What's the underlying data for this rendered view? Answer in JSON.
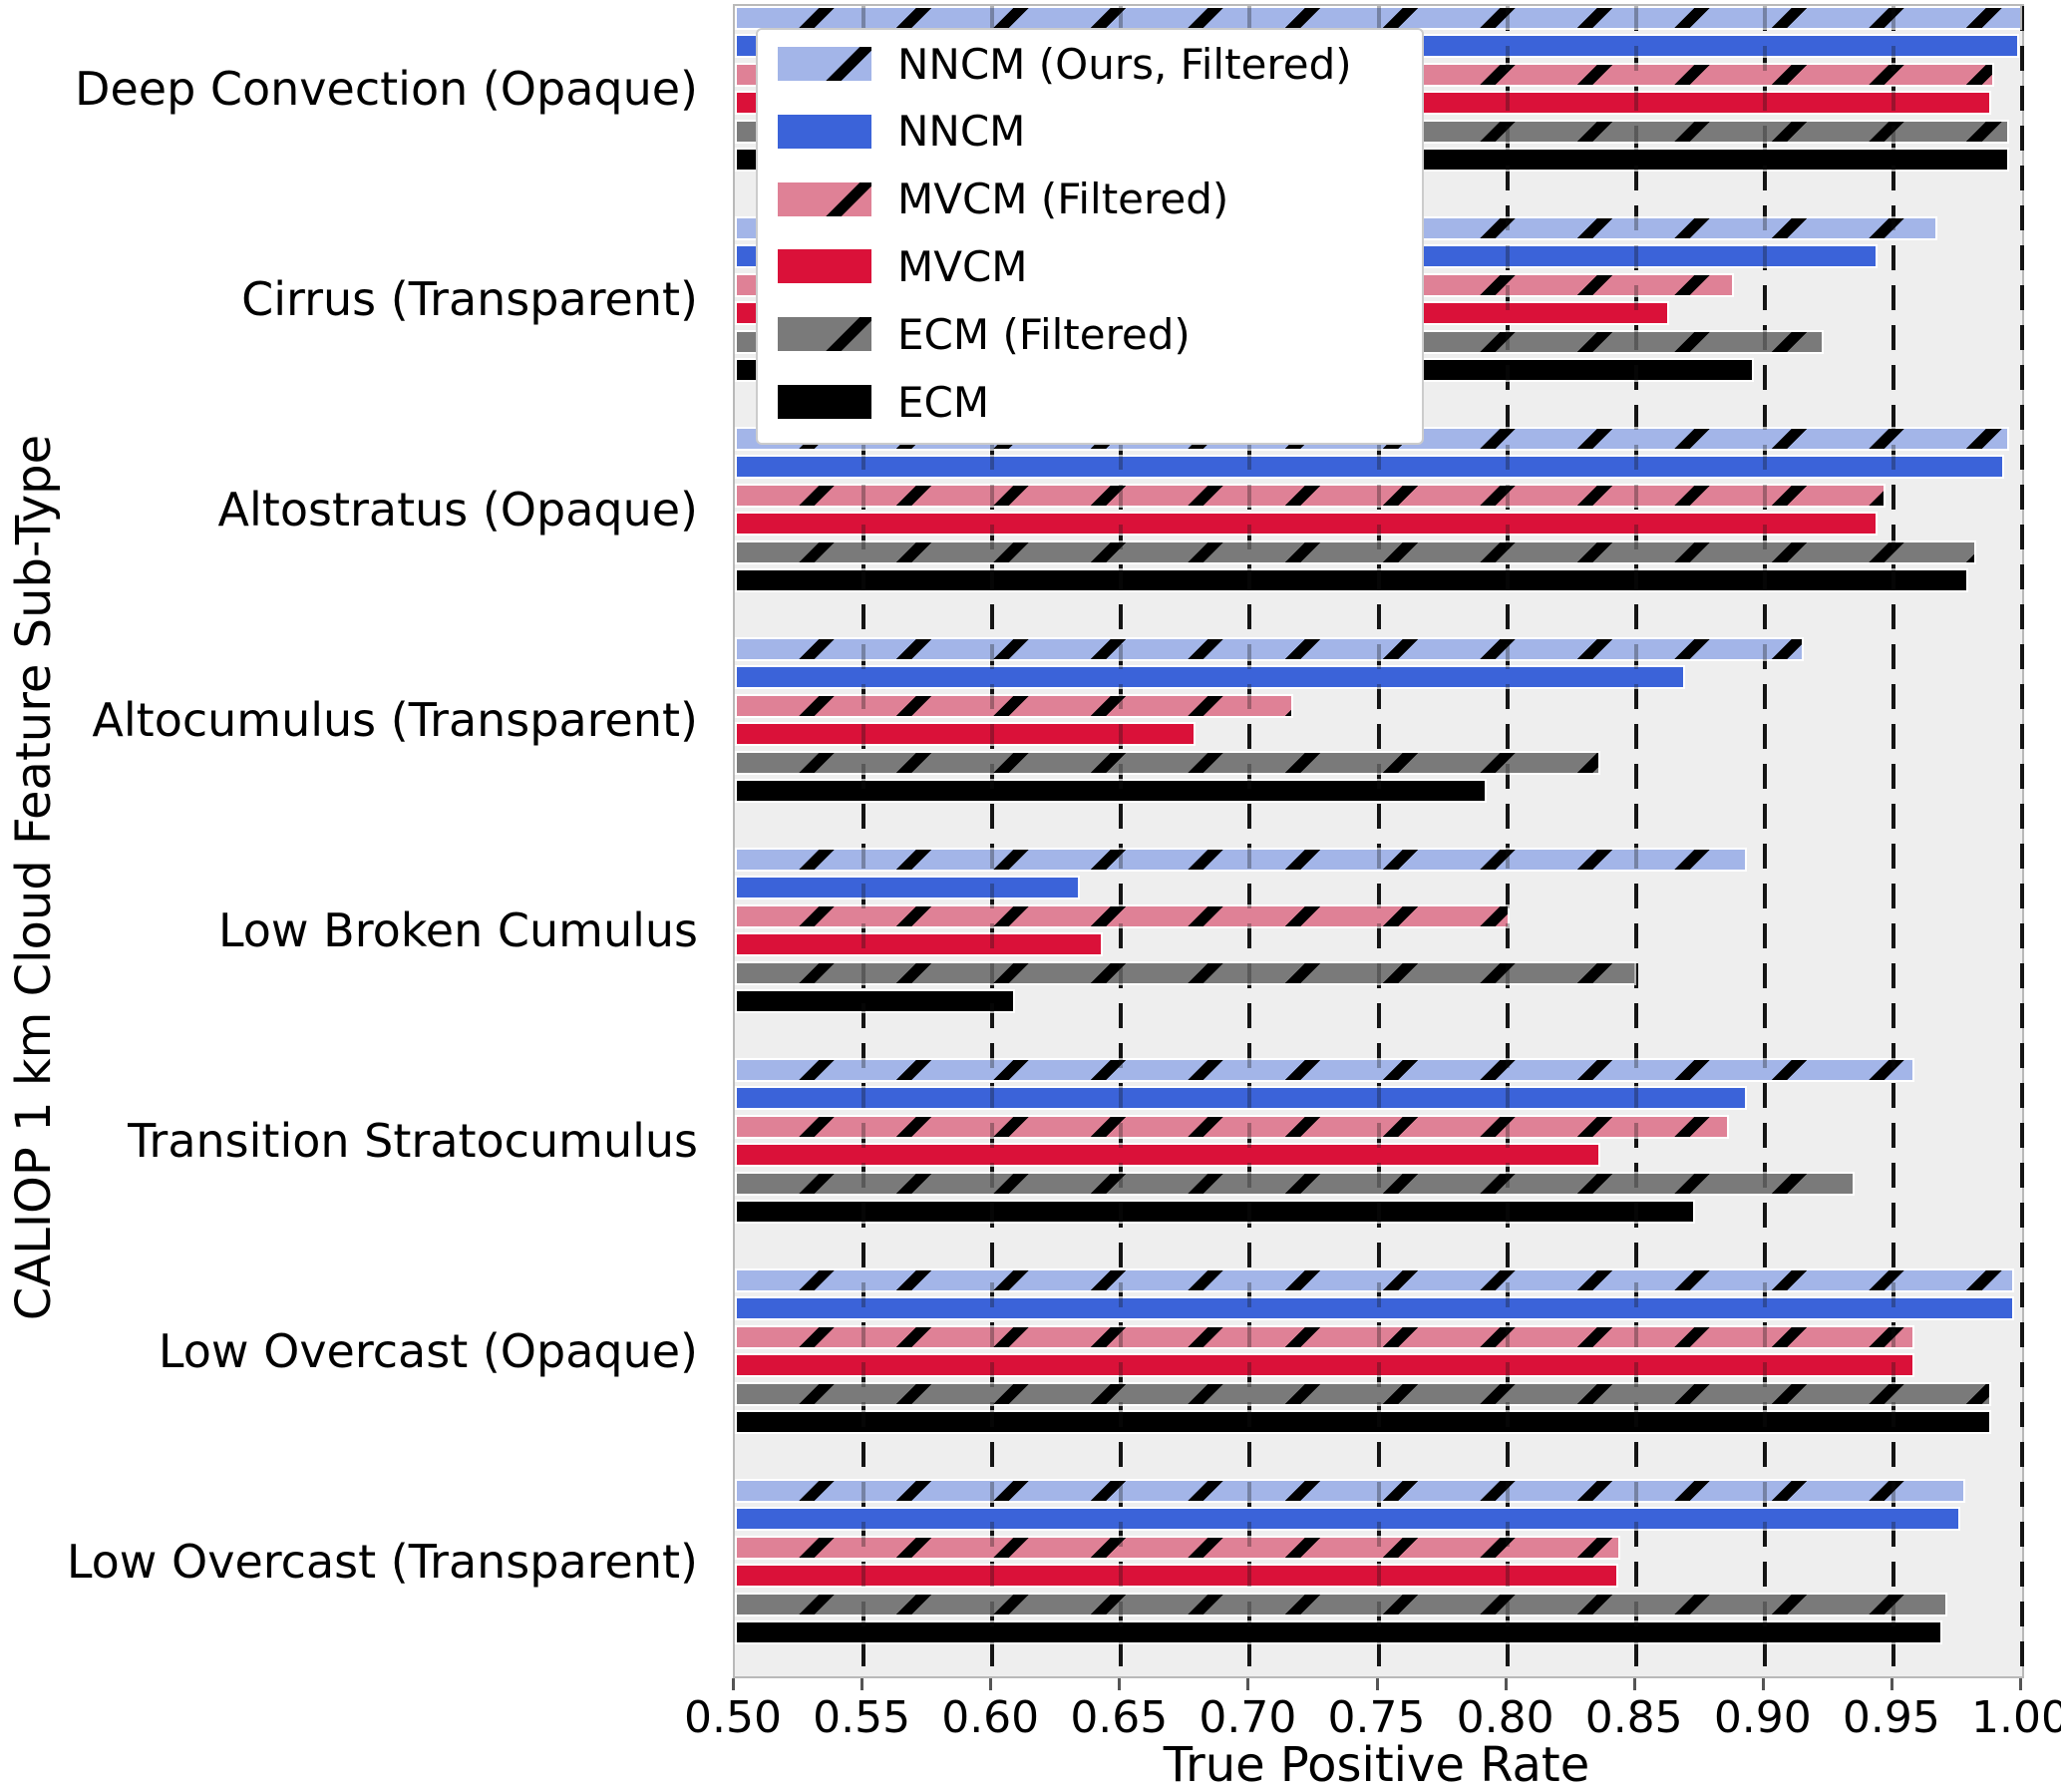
{
  "chart_data": {
    "type": "bar",
    "orientation": "horizontal",
    "xlabel": "True Positive Rate",
    "ylabel": "CALIOP 1 km Cloud Feature Sub-Type",
    "xlim": [
      0.5,
      1.0
    ],
    "xticks": [
      0.5,
      0.55,
      0.6,
      0.65,
      0.7,
      0.75,
      0.8,
      0.85,
      0.9,
      0.95,
      1.0
    ],
    "grid": "dashed-vertical",
    "legend_position": "upper-left",
    "plot_background": "#eeeeee",
    "categories": [
      "Deep Convection (Opaque)",
      "Cirrus (Transparent)",
      "Altostratus (Opaque)",
      "Altocumulus (Transparent)",
      "Low Broken Cumulus",
      "Transition Stratocumulus",
      "Low Overcast (Opaque)",
      "Low Overcast (Transparent)"
    ],
    "series": [
      {
        "name": "NNCM (Ours, Filtered)",
        "color": "#A3B5E8",
        "hatch": true,
        "values": [
          1.0,
          0.967,
          0.995,
          0.915,
          0.893,
          0.958,
          0.997,
          0.978
        ]
      },
      {
        "name": "NNCM",
        "color": "#3B63D9",
        "hatch": false,
        "values": [
          0.999,
          0.944,
          0.993,
          0.869,
          0.634,
          0.893,
          0.997,
          0.976
        ]
      },
      {
        "name": "MVCM (Filtered)",
        "color": "#DF8196",
        "hatch": true,
        "values": [
          0.989,
          0.888,
          0.947,
          0.717,
          0.801,
          0.886,
          0.958,
          0.844
        ]
      },
      {
        "name": "MVCM",
        "color": "#DA1139",
        "hatch": false,
        "values": [
          0.988,
          0.863,
          0.944,
          0.679,
          0.643,
          0.836,
          0.958,
          0.843
        ]
      },
      {
        "name": "ECM (Filtered)",
        "color": "#7A7A7A",
        "hatch": true,
        "values": [
          0.995,
          0.923,
          0.982,
          0.836,
          0.85,
          0.935,
          0.988,
          0.971
        ]
      },
      {
        "name": "ECM",
        "color": "#000000",
        "hatch": false,
        "values": [
          0.995,
          0.896,
          0.979,
          0.792,
          0.609,
          0.873,
          0.988,
          0.969
        ]
      }
    ]
  }
}
